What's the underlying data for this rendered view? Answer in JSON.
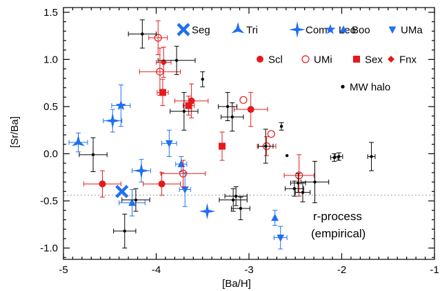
{
  "chart_data": {
    "type": "scatter",
    "xlabel": "[Ba/H]",
    "ylabel": "[Sr/Ba]",
    "xlim": [
      -5,
      -1
    ],
    "ylim": [
      -1.12,
      1.55
    ],
    "xticks": [
      -5,
      -4,
      -3,
      -2,
      -1
    ],
    "xtick_labels": [
      "-5",
      "-4",
      "-3",
      "-2",
      "-1"
    ],
    "yticks": [
      -1.0,
      -0.5,
      0.0,
      0.5,
      1.0,
      1.5
    ],
    "ytick_labels": [
      "-1.0",
      "-0.5",
      "0.0",
      "0.5",
      "1.0",
      "1.5"
    ],
    "grid": false,
    "reference_line": {
      "y": -0.44,
      "style": "dotted",
      "color": "#999999"
    },
    "annotation": {
      "lines": [
        "r-process",
        "(empirical)"
      ],
      "x": -2.55,
      "y": -0.72
    },
    "legend": {
      "placement": "top-right",
      "columns": 4
    },
    "series": [
      {
        "name": "Seg",
        "color": "#1f6ff0",
        "marker": "x-thick",
        "points": [
          {
            "x": -4.37,
            "y": -0.4
          }
        ]
      },
      {
        "name": "Tri",
        "color": "#1f6ff0",
        "marker": "tri-star",
        "points": [
          {
            "x": -4.84,
            "y": 0.12,
            "xerr": 0.1,
            "yerr": 0.1
          }
        ]
      },
      {
        "name": "Com",
        "color": "#1f6ff0",
        "marker": "four-star",
        "points": [
          {
            "x": -4.47,
            "y": 0.35,
            "xerr": 0.1,
            "yerr": 0.12
          },
          {
            "x": -4.16,
            "y": -0.18,
            "xerr": 0.1,
            "yerr": 0.12
          },
          {
            "x": -3.45,
            "y": -0.61
          }
        ]
      },
      {
        "name": "Leo",
        "color": "#1f6ff0",
        "marker": "five-star",
        "points": [
          {
            "x": -4.38,
            "y": 0.51,
            "xerr": 0.1,
            "yerr": 0.22
          }
        ]
      },
      {
        "name": "Boo",
        "color": "#1f6ff0",
        "marker": "triangle-up",
        "points": [
          {
            "x": -4.26,
            "y": -0.52,
            "xerr": 0.14,
            "yerr": 0.14
          },
          {
            "x": -3.73,
            "y": -0.11,
            "xerr": 0.06,
            "yerr": 0.08
          },
          {
            "x": -2.72,
            "y": -0.68,
            "yerr": 0.08
          }
        ]
      },
      {
        "name": "UMa",
        "color": "#1f6ff0",
        "marker": "triangle-down",
        "points": [
          {
            "x": -3.86,
            "y": 0.11,
            "xerr": 0.08,
            "yerr": 0.14
          },
          {
            "x": -3.69,
            "y": -0.38,
            "xerr": 0.06,
            "yerr": 0.18
          },
          {
            "x": -2.66,
            "y": -0.89,
            "xerr": 0.07,
            "yerr": 0.12
          }
        ]
      },
      {
        "name": "Scl",
        "color": "#e41a1c",
        "marker": "circle-filled",
        "points": [
          {
            "x": -4.58,
            "y": -0.32,
            "xerr": 0.2,
            "yerr": 0.14
          },
          {
            "x": -3.94,
            "y": -0.32,
            "xerr": 0.2,
            "yerr": 0.12
          },
          {
            "x": -3.62,
            "y": 0.56,
            "xerr": 0.18,
            "yerr": 0.18
          },
          {
            "x": -2.98,
            "y": 0.47,
            "xerr": 0.18,
            "yerr": 0.18
          }
        ]
      },
      {
        "name": "UMi",
        "color": "#e41a1c",
        "marker": "circle-open",
        "points": [
          {
            "x": -3.98,
            "y": 1.23,
            "xerr": 0.1,
            "yerr": 0.18
          },
          {
            "x": -3.96,
            "y": 0.87,
            "xerr": 0.22,
            "yerr": 0.25
          },
          {
            "x": -3.71,
            "y": -0.21,
            "xerr": 0.24,
            "yerr": 0.14
          },
          {
            "x": -3.06,
            "y": 0.57
          },
          {
            "x": -2.76,
            "y": 0.21
          },
          {
            "x": -2.81,
            "y": 0.08,
            "xerr": 0.1,
            "yerr": 0.1
          },
          {
            "x": -2.46,
            "y": -0.23,
            "xerr": 0.16,
            "yerr": 0.22
          }
        ]
      },
      {
        "name": "Sex",
        "color": "#e41a1c",
        "marker": "square",
        "points": [
          {
            "x": -3.93,
            "y": 0.65,
            "xerr": 0.06,
            "yerr": 0.14
          },
          {
            "x": -3.65,
            "y": 0.51,
            "xerr": 0.06,
            "yerr": 0.1
          },
          {
            "x": -3.29,
            "y": 0.08,
            "yerr": 0.15
          }
        ]
      },
      {
        "name": "Fnx",
        "color": "#e41a1c",
        "marker": "diamond",
        "points": [
          {
            "x": -3.92,
            "y": 0.97,
            "xerr": 0.08,
            "yerr": 0.16
          }
        ]
      },
      {
        "name": "MW halo",
        "color": "#000000",
        "marker": "dot",
        "points": [
          {
            "x": -4.68,
            "y": -0.01,
            "xerr": 0.15,
            "yerr": 0.18
          },
          {
            "x": -4.34,
            "y": -0.82,
            "xerr": 0.12,
            "yerr": 0.18
          },
          {
            "x": -4.15,
            "y": 1.27,
            "xerr": 0.15,
            "yerr": 0.15
          },
          {
            "x": -4.22,
            "y": -0.49,
            "xerr": 0.15,
            "yerr": 0.12
          },
          {
            "x": -3.78,
            "y": 0.99,
            "xerr": 0.2,
            "yerr": 0.15
          },
          {
            "x": -3.7,
            "y": 0.45,
            "xerr": 0.15,
            "yerr": 0.2
          },
          {
            "x": -3.5,
            "y": 0.79,
            "yerr": 0.08
          },
          {
            "x": -3.23,
            "y": 0.5,
            "xerr": 0.1,
            "yerr": 0.15
          },
          {
            "x": -3.18,
            "y": 0.39,
            "xerr": 0.12,
            "yerr": 0.15
          },
          {
            "x": -3.17,
            "y": -0.49,
            "xerr": 0.15,
            "yerr": 0.12
          },
          {
            "x": -3.14,
            "y": -0.45,
            "xerr": 0.12,
            "yerr": 0.1
          },
          {
            "x": -3.09,
            "y": -0.58,
            "xerr": 0.1,
            "yerr": 0.12
          },
          {
            "x": -2.82,
            "y": 0.08,
            "xerr": 0.08,
            "yerr": 0.18
          },
          {
            "x": -2.65,
            "y": 0.29,
            "yerr": 0.04
          },
          {
            "x": -2.59,
            "y": -0.02
          },
          {
            "x": -2.51,
            "y": -0.37,
            "xerr": 0.1,
            "yerr": 0.08
          },
          {
            "x": -2.47,
            "y": -0.31,
            "xerr": 0.08,
            "yerr": 0.1
          },
          {
            "x": -2.42,
            "y": -0.41,
            "xerr": 0.08,
            "yerr": 0.1
          },
          {
            "x": -2.29,
            "y": -0.3,
            "xerr": 0.15,
            "yerr": 0.22
          },
          {
            "x": -2.08,
            "y": -0.04,
            "xerr": 0.04,
            "yerr": 0.04
          },
          {
            "x": -2.03,
            "y": -0.03,
            "xerr": 0.04,
            "yerr": 0.04
          },
          {
            "x": -1.68,
            "y": -0.03,
            "xerr": 0.04,
            "yerr": 0.15
          }
        ]
      }
    ]
  }
}
